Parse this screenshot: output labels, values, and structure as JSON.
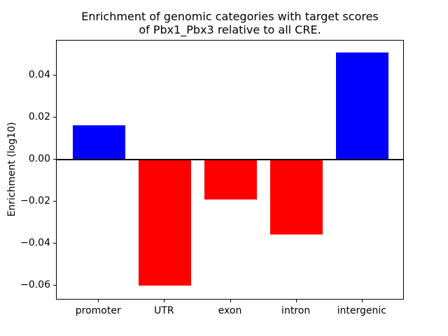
{
  "figure": {
    "background": "#ffffff"
  },
  "chart_data": {
    "type": "bar",
    "title": "Enrichment of genomic categories with target scores of Pbx1_Pbx3 relative to all CRE.",
    "title_lines": [
      "Enrichment of genomic categories with target scores",
      "of Pbx1_Pbx3 relative to all CRE."
    ],
    "xlabel": "",
    "ylabel": "Enrichment (log10)",
    "categories": [
      "promoter",
      "UTR",
      "exon",
      "intron",
      "intergenic"
    ],
    "values": [
      0.0163,
      -0.0601,
      -0.0192,
      -0.0356,
      0.0509
    ],
    "bar_colors": [
      "#0000ff",
      "#ff0000",
      "#ff0000",
      "#ff0000",
      "#0000ff"
    ],
    "positive_color": "#0000ff",
    "negative_color": "#ff0000",
    "ylim": [
      -0.0671,
      0.0566
    ],
    "xlim": [
      -0.64,
      4.64
    ],
    "bar_width_units": 0.8,
    "yticks": [
      -0.06,
      -0.04,
      -0.02,
      0.0,
      0.02,
      0.04
    ],
    "ytick_labels": [
      "−0.06",
      "−0.04",
      "−0.02",
      "0.00",
      "0.02",
      "0.04"
    ],
    "zero_line": 0,
    "grid": false,
    "legend": null,
    "axis_color": "#000000"
  }
}
